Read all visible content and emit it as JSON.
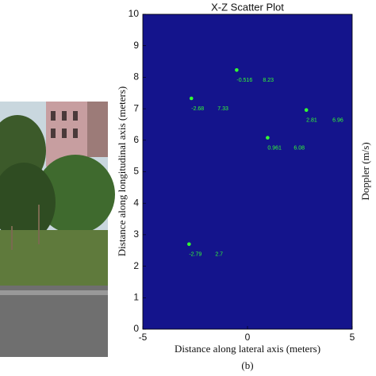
{
  "chart_data": {
    "type": "scatter",
    "title": "X-Z Scatter Plot",
    "xlabel": "Distance along lateral axis (meters)",
    "ylabel": "Distance along longitudinal axis (meters)",
    "y2label": "Doppler (m/s)",
    "background": "#14148c",
    "series": [
      {
        "color": "#33ff33",
        "x": [
          -2.68,
          -0.516,
          2.81,
          0.961,
          -2.79
        ],
        "values": [
          7.33,
          8.23,
          6.96,
          6.08,
          2.7
        ]
      }
    ],
    "xlim": [
      -5,
      5
    ],
    "ylim": [
      0,
      10
    ],
    "xticks": [
      -5,
      0,
      5
    ],
    "yticks": [
      0,
      1,
      2,
      3,
      4,
      5,
      6,
      7,
      8,
      9,
      10
    ]
  },
  "caption": "(b)"
}
